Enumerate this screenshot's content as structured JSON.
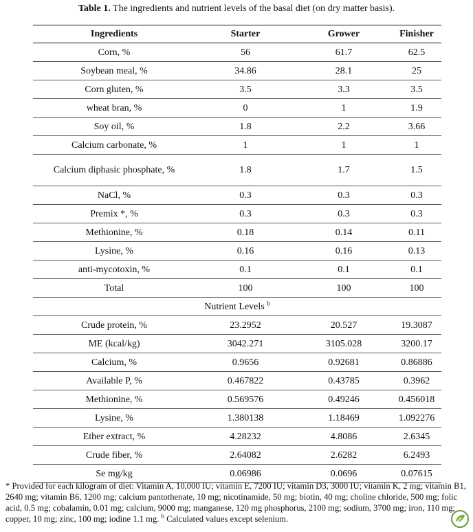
{
  "title": {
    "label": "Table 1.",
    "text": "The ingredients and nutrient levels of the basal diet (on dry matter basis)."
  },
  "table": {
    "header": [
      "Ingredients",
      "Starter",
      "Grower",
      "Finisher"
    ],
    "rows": [
      [
        "Corn, %",
        "56",
        "61.7",
        "62.5"
      ],
      [
        "Soybean meal, %",
        "34.86",
        "28.1",
        "25"
      ],
      [
        "Corn gluten, %",
        "3.5",
        "3.3",
        "3.5"
      ],
      [
        "wheat bran, %",
        "0",
        "1",
        "1.9"
      ],
      [
        "Soy oil, %",
        "1.8",
        "2.2",
        "3.66"
      ],
      [
        "Calcium carbonate, %",
        "1",
        "1",
        "1"
      ],
      [
        "Calcium diphasic phosphate, %",
        "1.8",
        "1.7",
        "1.5"
      ],
      [
        "NaCl, %",
        "0.3",
        "0.3",
        "0.3"
      ],
      [
        "Premix *, %",
        "0.3",
        "0.3",
        "0.3"
      ],
      [
        "Methionine, %",
        "0.18",
        "0.14",
        "0.11"
      ],
      [
        "Lysine, %",
        "0.16",
        "0.16",
        "0.13"
      ],
      [
        "anti-mycotoxin, %",
        "0.1",
        "0.1",
        "0.1"
      ],
      [
        "Total",
        "100",
        "100",
        "100"
      ]
    ],
    "section": {
      "label": "Nutrient Levels",
      "sup": "b"
    },
    "nutrient_rows": [
      [
        "Crude protein, %",
        "23.2952",
        "20.527",
        "19.3087"
      ],
      [
        "ME (kcal/kg)",
        "3042.271",
        "3105.028",
        "3200.17"
      ],
      [
        "Calcium, %",
        "0.9656",
        "0.92681",
        "0.86886"
      ],
      [
        "Available P, %",
        "0.467822",
        "0.43785",
        "0.3962"
      ],
      [
        "Methionine, %",
        "0.569576",
        "0.49246",
        "0.456018"
      ],
      [
        "Lysine, %",
        "1.380138",
        "1.18469",
        "1.092276"
      ],
      [
        "Ether extract, %",
        "4.28232",
        "4.8086",
        "2.6345"
      ],
      [
        "Crude fiber, %",
        "2.64082",
        "2.6282",
        "6.2493"
      ],
      [
        "Se mg/kg",
        "0.06986",
        "0.0696",
        "0.07615"
      ]
    ]
  },
  "footnote": {
    "text": "* Provided for each kilogram of diet: Vitamin A, 10,000 IU; vitamin E, 7200 IU; vitamin D3, 3000 IU; vitamin K, 2 mg; vitamin B1, 2640 mg; vitamin B6, 1200 mg; calcium pantothenate, 10 mg; nicotinamide, 50 mg; biotin, 40 mg; choline chloride, 500 mg; folic acid, 0.5 mg; cobalamin, 0.01 mg; calcium, 9000 mg; manganese, 120 mg phosphorus, 2100 mg; sodium, 3700 mg; iron, 110 mg; copper, 10 mg; zinc, 100 mg; iodine 1.1 mg.",
    "sup": "b",
    "text2": "Calculated values except selenium."
  }
}
